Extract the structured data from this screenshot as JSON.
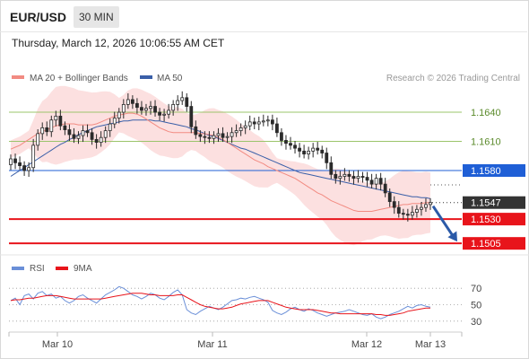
{
  "header": {
    "symbol": "EUR/USD",
    "timeframe": "30 MIN"
  },
  "datetime": "Thursday, March 12, 2026 10:06:55 AM CET",
  "legend": {
    "bollinger": "MA 20 + Bollinger Bands",
    "ma50": "MA 50",
    "credit": "Research © 2026 Trading Central",
    "rsi": "RSI",
    "rsi_ma": "9MA"
  },
  "colors": {
    "bollinger": "#f28b82",
    "band_fill": "#fcdada",
    "ma50": "#3a5fa8",
    "green_level": "#9bc46b",
    "blue_level": "#1f5fd6",
    "red_level": "#e8141b",
    "current": "#333333",
    "arrow": "#2b5aa8",
    "rsi": "#6a8fd8",
    "rsi_ma": "#e8141b",
    "candle": "#2a2a2a"
  },
  "chart_data": [
    {
      "type": "candlestick",
      "title": "",
      "x_ticks": [
        "Mar 10",
        "Mar 11",
        "Mar 12",
        "Mar 13"
      ],
      "ylim": [
        1.1495,
        1.1665
      ],
      "levels": [
        {
          "value": 1.164,
          "label": "1.1640",
          "kind": "green"
        },
        {
          "value": 1.161,
          "label": "1.1610",
          "kind": "green"
        },
        {
          "value": 1.158,
          "label": "1.1580",
          "kind": "blue"
        },
        {
          "value": 1.1547,
          "label": "1.1547",
          "kind": "current"
        },
        {
          "value": 1.153,
          "label": "1.1530",
          "kind": "red"
        },
        {
          "value": 1.1505,
          "label": "1.1505",
          "kind": "red"
        }
      ],
      "close": [
        1.1592,
        1.1588,
        1.1585,
        1.158,
        1.1583,
        1.1606,
        1.1618,
        1.1624,
        1.162,
        1.1632,
        1.1636,
        1.1626,
        1.1622,
        1.1617,
        1.1613,
        1.1616,
        1.1621,
        1.1619,
        1.1612,
        1.1609,
        1.1614,
        1.1621,
        1.1628,
        1.1634,
        1.164,
        1.1648,
        1.1653,
        1.1649,
        1.1645,
        1.1642,
        1.1644,
        1.1646,
        1.164,
        1.1637,
        1.1638,
        1.1642,
        1.1648,
        1.1652,
        1.1655,
        1.1646,
        1.1625,
        1.1617,
        1.1615,
        1.1614,
        1.1613,
        1.1616,
        1.1618,
        1.1614,
        1.1615,
        1.1619,
        1.1621,
        1.1624,
        1.1626,
        1.163,
        1.1628,
        1.163,
        1.1631,
        1.1632,
        1.1628,
        1.1619,
        1.1611,
        1.1608,
        1.1606,
        1.1603,
        1.16,
        1.1597,
        1.16,
        1.1603,
        1.1601,
        1.1598,
        1.1588,
        1.1576,
        1.1572,
        1.1574,
        1.1576,
        1.1574,
        1.1572,
        1.1574,
        1.1573,
        1.157,
        1.1566,
        1.1572,
        1.1566,
        1.1557,
        1.1548,
        1.1542,
        1.1536,
        1.1535,
        1.1534,
        1.1537,
        1.154,
        1.1542,
        1.1545,
        1.1547
      ],
      "series": [
        {
          "name": "MA 20 + Bollinger Bands",
          "values": [
            1.1602,
            1.1604,
            1.1606,
            1.1609,
            1.1612,
            1.1615,
            1.1618,
            1.162,
            1.1622,
            1.1624,
            1.1626,
            1.1627,
            1.1628,
            1.1628,
            1.1628,
            1.1627,
            1.1627,
            1.1627,
            1.1627,
            1.1628,
            1.163,
            1.1632,
            1.1634,
            1.1636,
            1.1637,
            1.1638,
            1.1639,
            1.1639,
            1.1638,
            1.1636,
            1.1633,
            1.163,
            1.1627,
            1.1624,
            1.1622,
            1.162,
            1.1619,
            1.1619,
            1.1619,
            1.1619,
            1.1619,
            1.1619,
            1.1618,
            1.1618,
            1.1617,
            1.1616,
            1.1614,
            1.1612,
            1.1609,
            1.1606,
            1.1603,
            1.16,
            1.1597,
            1.1594,
            1.1591,
            1.1589,
            1.1587,
            1.1584,
            1.1582,
            1.158,
            1.1578,
            1.1576,
            1.1574,
            1.1572,
            1.1569,
            1.1566,
            1.1563,
            1.156,
            1.1557,
            1.1555,
            1.1552,
            1.1549,
            1.1547,
            1.1545,
            1.1543,
            1.1541,
            1.1539,
            1.1538,
            1.1538,
            1.1538,
            1.1538,
            1.1539,
            1.154,
            1.1541,
            1.1542,
            1.1543,
            1.1544,
            1.1545,
            1.1545,
            1.1546,
            1.1546,
            1.1546,
            1.1547,
            1.1547
          ]
        },
        {
          "name": "MA 50",
          "values": [
            1.1574,
            1.1577,
            1.158,
            1.1583,
            1.1586,
            1.1589,
            1.1592,
            1.1595,
            1.1598,
            1.1601,
            1.1604,
            1.1607,
            1.1609,
            1.1612,
            1.1614,
            1.1617,
            1.1619,
            1.1621,
            1.1623,
            1.1625,
            1.1626,
            1.1627,
            1.1628,
            1.1629,
            1.163,
            1.1631,
            1.1631,
            1.1632,
            1.1632,
            1.1632,
            1.1632,
            1.1632,
            1.1631,
            1.1631,
            1.163,
            1.1629,
            1.1628,
            1.1627,
            1.1626,
            1.1625,
            1.1623,
            1.1622,
            1.162,
            1.1618,
            1.1616,
            1.1615,
            1.1613,
            1.1611,
            1.1609,
            1.1607,
            1.1605,
            1.1603,
            1.1602,
            1.16,
            1.1598,
            1.1596,
            1.1594,
            1.1592,
            1.159,
            1.1588,
            1.1586,
            1.1584,
            1.1582,
            1.158,
            1.1578,
            1.1577,
            1.1576,
            1.1575,
            1.1574,
            1.1573,
            1.1572,
            1.1571,
            1.157,
            1.1569,
            1.1568,
            1.1567,
            1.1566,
            1.1565,
            1.1564,
            1.1563,
            1.1562,
            1.1561,
            1.156,
            1.1559,
            1.1558,
            1.1557,
            1.1556,
            1.1555,
            1.1554,
            1.1553,
            1.1553,
            1.1552,
            1.1552,
            1.1551
          ]
        }
      ]
    },
    {
      "type": "line",
      "title": "",
      "ylim": [
        20,
        80
      ],
      "y_ticks": [
        70,
        50,
        30
      ],
      "series": [
        {
          "name": "RSI",
          "values": [
            55,
            58,
            50,
            61,
            63,
            57,
            64,
            66,
            61,
            63,
            58,
            60,
            55,
            52,
            55,
            60,
            62,
            58,
            55,
            52,
            57,
            62,
            65,
            68,
            72,
            70,
            66,
            62,
            60,
            57,
            60,
            64,
            62,
            58,
            56,
            60,
            65,
            68,
            62,
            44,
            40,
            38,
            42,
            45,
            48,
            46,
            44,
            47,
            51,
            55,
            56,
            58,
            57,
            59,
            60,
            58,
            56,
            53,
            43,
            40,
            38,
            41,
            45,
            47,
            44,
            42,
            45,
            43,
            40,
            38,
            36,
            38,
            40,
            41,
            42,
            44,
            42,
            40,
            38,
            37,
            39,
            35,
            33,
            35,
            38,
            40,
            42,
            45,
            48,
            46,
            49,
            50,
            48,
            47
          ]
        },
        {
          "name": "9MA",
          "values": [
            55,
            56,
            56,
            57,
            58,
            58,
            59,
            60,
            61,
            61,
            61,
            60,
            59,
            58,
            57,
            57,
            57,
            57,
            57,
            57,
            57,
            58,
            59,
            60,
            61,
            62,
            63,
            64,
            64,
            64,
            63,
            62,
            62,
            61,
            61,
            61,
            61,
            62,
            62,
            59,
            56,
            53,
            50,
            48,
            47,
            46,
            45,
            45,
            46,
            47,
            49,
            51,
            52,
            53,
            54,
            55,
            55,
            55,
            53,
            51,
            49,
            47,
            46,
            45,
            44,
            44,
            44,
            44,
            43,
            42,
            41,
            40,
            40,
            39,
            39,
            39,
            39,
            39,
            39,
            39,
            39,
            38,
            38,
            37,
            37,
            38,
            39,
            40,
            42,
            43,
            44,
            45,
            46,
            46
          ]
        }
      ]
    }
  ]
}
